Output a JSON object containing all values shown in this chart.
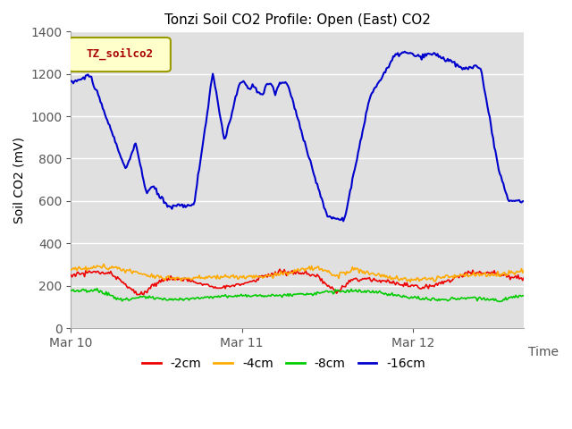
{
  "title": "Tonzi Soil CO2 Profile: Open (East) CO2",
  "ylabel": "Soil CO2 (mV)",
  "xlabel": "Time",
  "ylim": [
    0,
    1400
  ],
  "yticks": [
    0,
    200,
    400,
    600,
    800,
    1000,
    1200,
    1400
  ],
  "xtick_labels": [
    "Mar 10",
    "Mar 11",
    "Mar 12"
  ],
  "background_color": "#ffffff",
  "plot_bg_color": "#e0e0e0",
  "grid_color": "#ffffff",
  "legend_label": "TZ_soilco2",
  "legend_bg": "#ffffcc",
  "legend_border": "#999900",
  "series_colors": {
    "2cm": "#ee0000",
    "4cm": "#ffaa00",
    "8cm": "#00cc00",
    "16cm": "#0000cc"
  },
  "series_labels": [
    "-2cm",
    "-4cm",
    "-8cm",
    "-16cm"
  ]
}
